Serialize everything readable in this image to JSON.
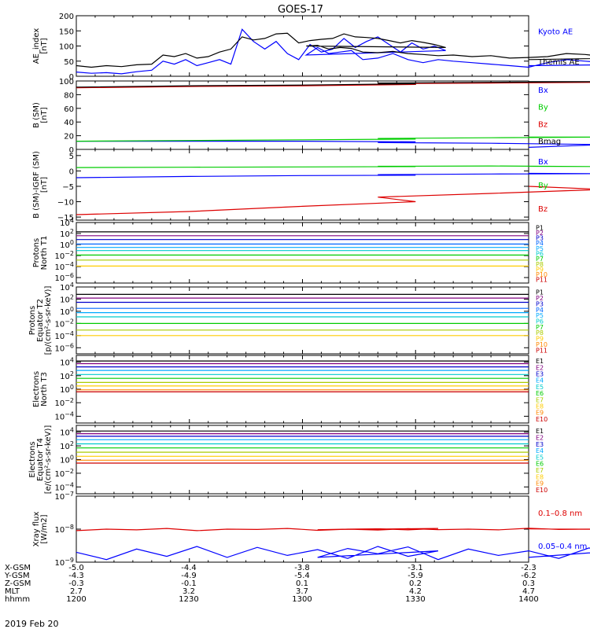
{
  "title": "GOES-17",
  "date_label": "2019 Feb 20",
  "chart_data": [
    {
      "type": "line",
      "ylabel": [
        "AE_index",
        "[nT]"
      ],
      "ylim": [
        0,
        200
      ],
      "yticks": [
        0,
        50,
        100,
        150,
        200
      ],
      "ytick_labels": [
        "0",
        "50",
        "100",
        "150",
        "200"
      ],
      "x": [
        1200,
        1204,
        1208,
        1212,
        1216,
        1220,
        1223,
        1226,
        1229,
        1232,
        1235,
        1238,
        1241,
        1244,
        1247,
        1250,
        1253,
        1256,
        1259,
        1262,
        1265,
        1268,
        1271,
        1274,
        1277,
        1280,
        1283,
        1286,
        1289,
        1292,
        1295,
        1298,
        1301,
        1304,
        1307,
        1310,
        1313,
        1316,
        1320,
        1324,
        1328,
        1332,
        1336,
        1340,
        1345,
        1350,
        1355,
        1360,
        1365,
        1370,
        1375,
        1380,
        1385,
        1390,
        1395,
        1400
      ],
      "series": [
        {
          "name": "Kyoto AE",
          "color": "#0000ff",
          "values": [
            14,
            10,
            12,
            8,
            15,
            20,
            50,
            40,
            55,
            35,
            45,
            55,
            40,
            155,
            115,
            90,
            115,
            75,
            55,
            105,
            80,
            90,
            125,
            95,
            115,
            130,
            105,
            80,
            110,
            90,
            100,
            85,
            70,
            95,
            75,
            80,
            85,
            55,
            60,
            75,
            55,
            45,
            55,
            50,
            45,
            40,
            35,
            30,
            45,
            55,
            50,
            45,
            40,
            35,
            40,
            35
          ]
        },
        {
          "name": "Themis AE",
          "color": "#000000",
          "values": [
            35,
            30,
            35,
            32,
            38,
            40,
            70,
            65,
            75,
            60,
            65,
            80,
            90,
            130,
            120,
            125,
            140,
            142,
            110,
            118,
            122,
            125,
            140,
            130,
            128,
            125,
            118,
            110,
            118,
            112,
            105,
            95,
            100,
            102,
            90,
            95,
            92,
            80,
            78,
            82,
            75,
            72,
            68,
            70,
            65,
            68,
            60,
            62,
            65,
            75,
            72,
            65,
            68,
            60,
            62,
            55
          ]
        }
      ]
    },
    {
      "type": "line",
      "ylabel": [
        "B (SM)",
        "[nT]"
      ],
      "ylim": [
        0,
        100
      ],
      "yticks": [
        0,
        20,
        40,
        60,
        80,
        100
      ],
      "ytick_labels": [
        "0",
        "20",
        "40",
        "60",
        "80",
        "100"
      ],
      "x": [
        1200,
        1230,
        1260,
        1290,
        1320,
        1350,
        1380,
        1400
      ],
      "series": [
        {
          "name": "Bx",
          "color": "#0000ff",
          "values": [
            12,
            12,
            12,
            11,
            10,
            9,
            7,
            3
          ]
        },
        {
          "name": "By",
          "color": "#00cc00",
          "values": [
            12,
            13,
            14,
            15,
            16,
            17,
            18,
            18
          ]
        },
        {
          "name": "Bz",
          "color": "#dd0000",
          "values": [
            90,
            92,
            93,
            95,
            96,
            97,
            98,
            98
          ]
        },
        {
          "name": "Bmag",
          "color": "#000000",
          "values": [
            91,
            93,
            94,
            96,
            97,
            98,
            99,
            99
          ]
        }
      ]
    },
    {
      "type": "line",
      "ylabel": [
        "B (SM)-IGRF (SM)",
        "[nT]"
      ],
      "ylim": [
        -16,
        7
      ],
      "yticks": [
        5,
        0,
        -5,
        -10,
        -15
      ],
      "ytick_labels": [
        "5",
        "0",
        "−5",
        "−10",
        "−15"
      ],
      "x": [
        1200,
        1230,
        1260,
        1290,
        1320,
        1350,
        1380,
        1400
      ],
      "series": [
        {
          "name": "Bx",
          "color": "#0000ff",
          "values": [
            -2.2,
            -1.8,
            -1.5,
            -1.4,
            -1.2,
            -1.0,
            -0.9,
            -0.8
          ]
        },
        {
          "name": "By",
          "color": "#00cc00",
          "values": [
            1.1,
            1.2,
            1.3,
            1.4,
            1.5,
            1.6,
            1.4,
            1.5
          ]
        },
        {
          "name": "Bz",
          "color": "#dd0000",
          "values": [
            -14.2,
            -13.2,
            -11.5,
            -10.0,
            -8.5,
            -7.3,
            -6.0,
            -5.0
          ]
        }
      ]
    },
    {
      "type": "line",
      "log": true,
      "ylabel": [
        "Protons",
        "North T1"
      ],
      "ylog_range": [
        -7,
        4
      ],
      "ytick_labels": [
        "10^4",
        "10^2",
        "10^0",
        "10^-2",
        "10^-4",
        "10^-6"
      ],
      "channels": [
        {
          "name": "P1",
          "color": "#000000",
          "value": 200
        },
        {
          "name": "P2",
          "color": "#800080",
          "value": 40
        },
        {
          "name": "P3",
          "color": "#0000cc",
          "value": 8
        },
        {
          "name": "P4",
          "color": "#0066ff",
          "value": 1.2
        },
        {
          "name": "P5",
          "color": "#00aaff",
          "value": 0.3
        },
        {
          "name": "P6",
          "color": "#00cccc",
          "value": 0.08
        },
        {
          "name": "P7",
          "color": "#00cc00",
          "value": 0.012
        },
        {
          "name": "P8",
          "color": "#aacc00",
          "value": 0.0015
        },
        {
          "name": "P9",
          "color": "#ffcc00",
          "value": 0.00012
        },
        {
          "name": "P10",
          "color": "#ff8800",
          "value": null
        },
        {
          "name": "P11",
          "color": "#cc0000",
          "value": null
        }
      ]
    },
    {
      "type": "line",
      "log": true,
      "ylabel": [
        "Protons",
        "Equator T2",
        "[p/(cm²-s-sr-keV)]"
      ],
      "ylog_range": [
        -7,
        4
      ],
      "ytick_labels": [
        "10^4",
        "10^2",
        "10^0",
        "10^-2",
        "10^-4",
        "10^-6"
      ],
      "channels": [
        {
          "name": "P1",
          "color": "#000000",
          "value": 600
        },
        {
          "name": "P2",
          "color": "#800080",
          "value": 150
        },
        {
          "name": "P3",
          "color": "#0000cc",
          "value": 30
        },
        {
          "name": "P4",
          "color": "#0066ff",
          "value": 3
        },
        {
          "name": "P5",
          "color": "#00aaff",
          "value": 0.6
        },
        {
          "name": "P6",
          "color": "#00cccc",
          "value": 0.12
        },
        {
          "name": "P7",
          "color": "#00cc00",
          "value": 0.01
        },
        {
          "name": "P8",
          "color": "#aacc00",
          "value": 0.0008
        },
        {
          "name": "P9",
          "color": "#ffcc00",
          "value": 0.0001
        },
        {
          "name": "P10",
          "color": "#ff8800",
          "value": null
        },
        {
          "name": "P11",
          "color": "#cc0000",
          "value": null
        }
      ]
    },
    {
      "type": "line",
      "log": true,
      "ylabel": [
        "Electrons",
        "North T3"
      ],
      "ylog_range": [
        -5,
        5
      ],
      "ytick_labels": [
        "10^4",
        "10^2",
        "10^0",
        "10^-2",
        "10^-4"
      ],
      "channels": [
        {
          "name": "E1",
          "color": "#000000",
          "value": 15000
        },
        {
          "name": "E2",
          "color": "#800080",
          "value": 6000
        },
        {
          "name": "E3",
          "color": "#0000cc",
          "value": 2000
        },
        {
          "name": "E4",
          "color": "#00aaff",
          "value": 600
        },
        {
          "name": "E5",
          "color": "#00cccc",
          "value": 150
        },
        {
          "name": "E6",
          "color": "#00cc00",
          "value": 40
        },
        {
          "name": "E7",
          "color": "#aacc00",
          "value": 10
        },
        {
          "name": "E8",
          "color": "#ffcc00",
          "value": 3
        },
        {
          "name": "E9",
          "color": "#ff8800",
          "value": 0.8
        },
        {
          "name": "E10",
          "color": "#cc0000",
          "value": 0.4
        }
      ]
    },
    {
      "type": "line",
      "log": true,
      "ylabel": [
        "Electrons",
        "Equator T4",
        "[e/(cm²-s-sr-keV)]"
      ],
      "ylog_range": [
        -5,
        5
      ],
      "ytick_labels": [
        "10^4",
        "10^2",
        "10^0",
        "10^-2",
        "10^-4"
      ],
      "channels": [
        {
          "name": "E1",
          "color": "#000000",
          "value": 15000
        },
        {
          "name": "E2",
          "color": "#800080",
          "value": 6000
        },
        {
          "name": "E3",
          "color": "#0000cc",
          "value": 2500
        },
        {
          "name": "E4",
          "color": "#00aaff",
          "value": 800
        },
        {
          "name": "E5",
          "color": "#00cccc",
          "value": 200
        },
        {
          "name": "E6",
          "color": "#00cc00",
          "value": 50
        },
        {
          "name": "E7",
          "color": "#aacc00",
          "value": 12
        },
        {
          "name": "E8",
          "color": "#ffcc00",
          "value": 3
        },
        {
          "name": "E9",
          "color": "#ff8800",
          "value": 0.8
        },
        {
          "name": "E10",
          "color": "#cc0000",
          "value": 0.3
        }
      ]
    },
    {
      "type": "line",
      "log": true,
      "ylabel": [
        "Xray flux",
        "[W/m2]"
      ],
      "ylog_range": [
        -9,
        -7
      ],
      "ytick_labels": [
        "10^-7",
        "10^-8",
        "10^-9"
      ],
      "x": [
        1200,
        1208,
        1216,
        1224,
        1232,
        1240,
        1248,
        1256,
        1264,
        1272,
        1280,
        1288,
        1296,
        1304,
        1312,
        1320,
        1328,
        1336,
        1344,
        1352,
        1360,
        1368,
        1376,
        1384,
        1392,
        1400
      ],
      "series": [
        {
          "name": "0.1–0.8 nm",
          "color": "#dd0000",
          "values": [
            9e-09,
            1e-08,
            9.5e-09,
            1.05e-08,
            9e-09,
            1e-08,
            9.8e-09,
            1.05e-08,
            9.2e-09,
            1e-08,
            1.02e-08,
            9.5e-09,
            1.05e-08,
            9.6e-09,
            1e-08,
            9.4e-09,
            1.04e-08,
            9.7e-09,
            1e-08,
            9.5e-09,
            1.06e-08,
            9.8e-09,
            1e-08,
            1.05e-08,
            9.7e-09,
            1.02e-08
          ]
        },
        {
          "name": "0.05–0.4 nm",
          "color": "#0000ff",
          "values": [
            2e-09,
            1.2e-09,
            2.5e-09,
            1.5e-09,
            3e-09,
            1.4e-09,
            2.8e-09,
            1.6e-09,
            2.4e-09,
            1.3e-09,
            3e-09,
            1.5e-09,
            2.2e-09,
            1.4e-09,
            2.6e-09,
            1.8e-09,
            2.9e-09,
            1.2e-09,
            2.5e-09,
            1.6e-09,
            2.2e-09,
            1.3e-09,
            2.7e-09,
            1.5e-09,
            2.6e-09,
            1.4e-09
          ]
        }
      ]
    }
  ],
  "footer": {
    "rows": [
      {
        "label": "X-GSM",
        "values": [
          "-5.0",
          "-4.4",
          "-3.8",
          "-3.1",
          "-2.3"
        ]
      },
      {
        "label": "Y-GSM",
        "values": [
          "-4.3",
          "-4.9",
          "-5.4",
          "-5.9",
          "-6.2"
        ]
      },
      {
        "label": "Z-GSM",
        "values": [
          "-0.3",
          "-0.1",
          "0.1",
          "0.2",
          "0.3"
        ]
      },
      {
        "label": "MLT",
        "values": [
          "2.7",
          "3.2",
          "3.7",
          "4.2",
          "4.7"
        ]
      },
      {
        "label": "hhmm",
        "values": [
          "1200",
          "1230",
          "1300",
          "1330",
          "1400"
        ]
      }
    ]
  }
}
